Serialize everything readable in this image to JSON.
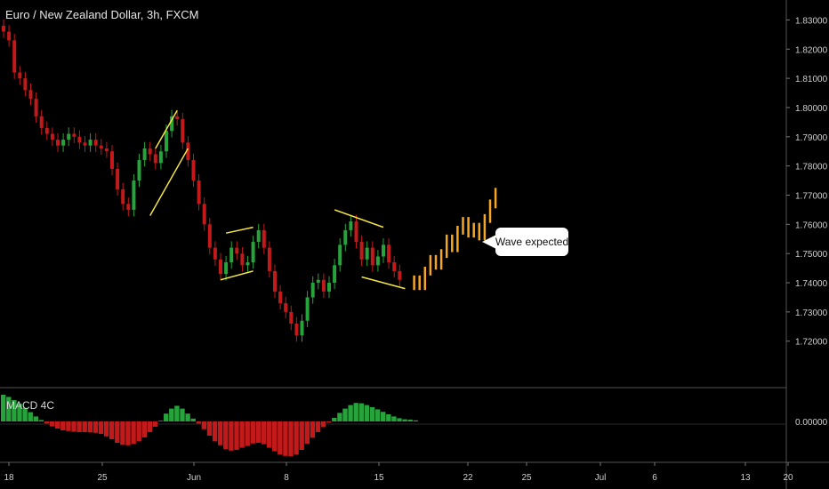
{
  "header": {
    "title": "Euro / New Zealand Dollar, 3h, FXCM"
  },
  "annotation": {
    "text": "Wave expected"
  },
  "colors": {
    "up": "#26a33a",
    "down": "#c21a1a",
    "projection": "#f5a623",
    "pattern": "#f5e642",
    "grid": "#555555"
  },
  "chart_data": [
    {
      "type": "candlestick",
      "title": "Euro / New Zealand Dollar, 3h, FXCM",
      "ylim": [
        1.712,
        1.835
      ],
      "y_ticks": [
        "1.83000",
        "1.82000",
        "1.81000",
        "1.80000",
        "1.79000",
        "1.78000",
        "1.77000",
        "1.76000",
        "1.75000",
        "1.74000",
        "1.73000",
        "1.72000"
      ],
      "x_ticks": [
        "18",
        "25",
        "Jun",
        "8",
        "15",
        "22",
        "25",
        "Jul",
        "6",
        "13",
        "20"
      ],
      "series": [
        {
          "kind": "price-path",
          "values": [
            1.826,
            1.823,
            1.812,
            1.81,
            1.806,
            1.803,
            1.797,
            1.793,
            1.791,
            1.789,
            1.787,
            1.789,
            1.791,
            1.79,
            1.788,
            1.787,
            1.789,
            1.787,
            1.786,
            1.785,
            1.779,
            1.772,
            1.767,
            1.765,
            1.775,
            1.782,
            1.786,
            1.784,
            1.781,
            1.785,
            1.792,
            1.797,
            1.796,
            1.788,
            1.782,
            1.775,
            1.767,
            1.76,
            1.752,
            1.748,
            1.743,
            1.747,
            1.752,
            1.75,
            1.746,
            1.747,
            1.754,
            1.758,
            1.752,
            1.744,
            1.737,
            1.733,
            1.73,
            1.726,
            1.722,
            1.727,
            1.735,
            1.74,
            1.741,
            1.737,
            1.74,
            1.746,
            1.753,
            1.758,
            1.761,
            1.754,
            1.748,
            1.752,
            1.746,
            1.749,
            1.753,
            1.747,
            1.744,
            1.741
          ]
        },
        {
          "kind": "projection",
          "values": [
            1.741,
            1.739,
            1.744,
            1.748,
            1.746,
            1.75,
            1.755,
            1.752,
            1.758,
            1.761,
            1.757,
            1.759,
            1.756,
            1.762,
            1.767,
            1.771
          ]
        }
      ],
      "patterns": [
        {
          "kind": "rising-wedge",
          "segments": [
            [
              [
                28,
                1.786
              ],
              [
                32,
                1.799
              ]
            ],
            [
              [
                27,
                1.763
              ],
              [
                34,
                1.786
              ]
            ]
          ]
        },
        {
          "kind": "flag",
          "segments": [
            [
              [
                41,
                1.757
              ],
              [
                46,
                1.759
              ]
            ],
            [
              [
                40,
                1.741
              ],
              [
                46,
                1.744
              ]
            ]
          ]
        },
        {
          "kind": "descending-channel",
          "segments": [
            [
              [
                61,
                1.765
              ],
              [
                70,
                1.759
              ]
            ],
            [
              [
                66,
                1.742
              ],
              [
                74,
                1.738
              ]
            ]
          ]
        }
      ]
    },
    {
      "type": "bar",
      "title": "MACD 4C",
      "ylim": [
        -0.0105,
        0.0085
      ],
      "y_ticks": [
        "0.00000"
      ],
      "values": [
        0.0075,
        0.0069,
        0.006,
        0.005,
        0.0038,
        0.0026,
        0.0014,
        0.0004,
        -0.0006,
        -0.0014,
        -0.002,
        -0.0025,
        -0.0027,
        -0.0029,
        -0.003,
        -0.003,
        -0.0031,
        -0.0032,
        -0.0035,
        -0.0042,
        -0.005,
        -0.006,
        -0.0066,
        -0.0067,
        -0.0063,
        -0.0056,
        -0.0045,
        -0.003,
        -0.0015,
        0.0002,
        0.0022,
        0.0036,
        0.0044,
        0.0036,
        0.0022,
        0.0008,
        -0.0006,
        -0.0022,
        -0.004,
        -0.0056,
        -0.0067,
        -0.0078,
        -0.0082,
        -0.008,
        -0.0074,
        -0.0069,
        -0.0062,
        -0.006,
        -0.0064,
        -0.0074,
        -0.0084,
        -0.0093,
        -0.0097,
        -0.0098,
        -0.0093,
        -0.008,
        -0.0063,
        -0.0046,
        -0.003,
        -0.0016,
        -0.0003,
        0.001,
        0.0024,
        0.0036,
        0.0046,
        0.0052,
        0.0051,
        0.0046,
        0.004,
        0.0034,
        0.0027,
        0.002,
        0.0014,
        0.0009,
        0.0006,
        0.0005,
        0.0003
      ]
    }
  ]
}
